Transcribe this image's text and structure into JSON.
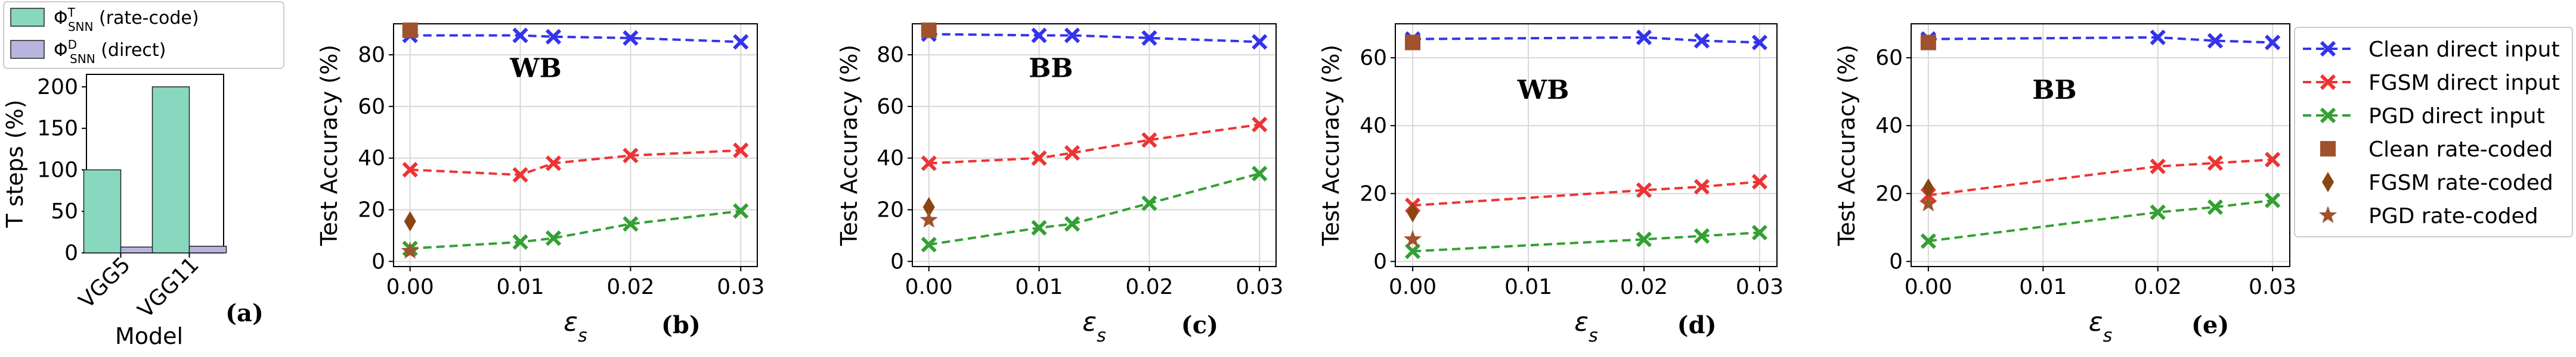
{
  "colors": {
    "clean_direct": "#3333ee",
    "fgsm_direct": "#ee3333",
    "pgd_direct": "#33a033",
    "clean_rate": "#a0522d",
    "fgsm_rate": "#8b4513",
    "pgd_rate": "#a0522d",
    "bar_rate": "#88d8c0",
    "bar_direct": "#b8b4e0",
    "grid": "#d8d8d8"
  },
  "legend": {
    "entries": [
      {
        "label": "Clean direct input",
        "kind": "line",
        "color_key": "clean_direct",
        "marker": "x"
      },
      {
        "label": "FGSM direct input",
        "kind": "line",
        "color_key": "fgsm_direct",
        "marker": "x"
      },
      {
        "label": "PGD direct input",
        "kind": "line",
        "color_key": "pgd_direct",
        "marker": "x"
      },
      {
        "label": "Clean rate-coded",
        "kind": "marker",
        "color_key": "clean_rate",
        "marker": "square"
      },
      {
        "label": "FGSM rate-coded",
        "kind": "marker",
        "color_key": "fgsm_rate",
        "marker": "diamond"
      },
      {
        "label": "PGD rate-coded",
        "kind": "marker",
        "color_key": "pgd_rate",
        "marker": "star"
      }
    ]
  },
  "chart_data": [
    {
      "panel": "(a)",
      "type": "bar",
      "categories": [
        "VGG5",
        "VGG11"
      ],
      "series": [
        {
          "name": "Φ^T_SNN (rate-code)",
          "color_key": "bar_rate",
          "values": [
            100,
            200
          ]
        },
        {
          "name": "Φ^D_SNN (direct)",
          "color_key": "bar_direct",
          "values": [
            7,
            8
          ]
        }
      ],
      "legend_labels": [
        {
          "base": "Φ",
          "sup": "T",
          "sub": "SNN",
          "rest": " (rate-code)"
        },
        {
          "base": "Φ",
          "sup": "D",
          "sub": "SNN",
          "rest": " (direct)"
        }
      ],
      "xlabel": "Model",
      "ylabel": "T steps (%)",
      "ylim": [
        0,
        215
      ],
      "yticks": [
        0,
        50,
        100,
        150,
        200
      ],
      "panel_label": "(a)"
    },
    {
      "panel": "(b)",
      "type": "line",
      "annotation": "WB",
      "panel_label": "(b)",
      "xlabel": "ε_s",
      "ylabel": "Test Accuracy (%)",
      "xlim": [
        -0.0015,
        0.0315
      ],
      "ylim": [
        -2,
        92
      ],
      "xticks": [
        "0.00",
        "0.01",
        "0.02",
        "0.03"
      ],
      "yticks": [
        0,
        20,
        40,
        60,
        80
      ],
      "series": [
        {
          "name": "Clean direct input",
          "color_key": "clean_direct",
          "x": [
            0,
            0.01,
            0.013,
            0.02,
            0.03
          ],
          "y": [
            87.5,
            87.5,
            87,
            86.5,
            85
          ]
        },
        {
          "name": "FGSM direct input",
          "color_key": "fgsm_direct",
          "x": [
            0,
            0.01,
            0.013,
            0.02,
            0.03
          ],
          "y": [
            35.5,
            33.5,
            38,
            41,
            43
          ]
        },
        {
          "name": "PGD direct input",
          "color_key": "pgd_direct",
          "x": [
            0,
            0.01,
            0.013,
            0.02,
            0.03
          ],
          "y": [
            5,
            7.5,
            9,
            14.5,
            19.5
          ]
        }
      ],
      "rate_coded": [
        {
          "name": "Clean rate-coded",
          "color_key": "clean_rate",
          "marker": "square",
          "x": 0,
          "y": 89.5
        },
        {
          "name": "FGSM rate-coded",
          "color_key": "fgsm_rate",
          "marker": "diamond",
          "x": 0,
          "y": 15.5
        },
        {
          "name": "PGD rate-coded",
          "color_key": "pgd_rate",
          "marker": "star",
          "x": 0,
          "y": 4
        }
      ]
    },
    {
      "panel": "(c)",
      "type": "line",
      "annotation": "BB",
      "panel_label": "(c)",
      "xlabel": "ε_s",
      "ylabel": "Test Accuracy (%)",
      "xlim": [
        -0.0015,
        0.0315
      ],
      "ylim": [
        -2,
        92
      ],
      "xticks": [
        "0.00",
        "0.01",
        "0.02",
        "0.03"
      ],
      "yticks": [
        0,
        20,
        40,
        60,
        80
      ],
      "series": [
        {
          "name": "Clean direct input",
          "color_key": "clean_direct",
          "x": [
            0,
            0.01,
            0.013,
            0.02,
            0.03
          ],
          "y": [
            88,
            87.5,
            87.5,
            86.5,
            85
          ]
        },
        {
          "name": "FGSM direct input",
          "color_key": "fgsm_direct",
          "x": [
            0,
            0.01,
            0.013,
            0.02,
            0.03
          ],
          "y": [
            38,
            40,
            42,
            47,
            53
          ]
        },
        {
          "name": "PGD direct input",
          "color_key": "pgd_direct",
          "x": [
            0,
            0.01,
            0.013,
            0.02,
            0.03
          ],
          "y": [
            6.5,
            13,
            14.5,
            22.5,
            34
          ]
        }
      ],
      "rate_coded": [
        {
          "name": "Clean rate-coded",
          "color_key": "clean_rate",
          "marker": "square",
          "x": 0,
          "y": 89.5
        },
        {
          "name": "FGSM rate-coded",
          "color_key": "fgsm_rate",
          "marker": "diamond",
          "x": 0,
          "y": 21
        },
        {
          "name": "PGD rate-coded",
          "color_key": "pgd_rate",
          "marker": "star",
          "x": 0,
          "y": 16
        }
      ]
    },
    {
      "panel": "(d)",
      "type": "line",
      "annotation": "WB",
      "panel_label": "(d)",
      "xlabel": "ε_s",
      "ylabel": "Test Accuracy (%)",
      "xlim": [
        -0.0015,
        0.0315
      ],
      "ylim": [
        -1.5,
        70
      ],
      "xticks": [
        "0.00",
        "0.01",
        "0.02",
        "0.03"
      ],
      "yticks": [
        0,
        20,
        40,
        60
      ],
      "series": [
        {
          "name": "Clean direct input",
          "color_key": "clean_direct",
          "x": [
            0,
            0.02,
            0.025,
            0.03
          ],
          "y": [
            65.5,
            66,
            65,
            64.5
          ]
        },
        {
          "name": "FGSM direct input",
          "color_key": "fgsm_direct",
          "x": [
            0,
            0.02,
            0.025,
            0.03
          ],
          "y": [
            16.5,
            21,
            22,
            23.5
          ]
        },
        {
          "name": "PGD direct input",
          "color_key": "pgd_direct",
          "x": [
            0,
            0.02,
            0.025,
            0.03
          ],
          "y": [
            3,
            6.5,
            7.5,
            8.5
          ]
        }
      ],
      "rate_coded": [
        {
          "name": "Clean rate-coded",
          "color_key": "clean_rate",
          "marker": "square",
          "x": 0,
          "y": 64.5
        },
        {
          "name": "FGSM rate-coded",
          "color_key": "fgsm_rate",
          "marker": "diamond",
          "x": 0,
          "y": 14.5
        },
        {
          "name": "PGD rate-coded",
          "color_key": "pgd_rate",
          "marker": "star",
          "x": 0,
          "y": 6.5
        }
      ]
    },
    {
      "panel": "(e)",
      "type": "line",
      "annotation": "BB",
      "panel_label": "(e)",
      "xlabel": "ε_s",
      "ylabel": "Test Accuracy (%)",
      "xlim": [
        -0.0015,
        0.0315
      ],
      "ylim": [
        -1.5,
        70
      ],
      "xticks": [
        "0.00",
        "0.01",
        "0.02",
        "0.03"
      ],
      "yticks": [
        0,
        20,
        40,
        60
      ],
      "series": [
        {
          "name": "Clean direct input",
          "color_key": "clean_direct",
          "x": [
            0,
            0.02,
            0.025,
            0.03
          ],
          "y": [
            65.5,
            66,
            65,
            64.5
          ]
        },
        {
          "name": "FGSM direct input",
          "color_key": "fgsm_direct",
          "x": [
            0,
            0.02,
            0.025,
            0.03
          ],
          "y": [
            19.5,
            28,
            29,
            30
          ]
        },
        {
          "name": "PGD direct input",
          "color_key": "pgd_direct",
          "x": [
            0,
            0.02,
            0.025,
            0.03
          ],
          "y": [
            6,
            14.5,
            16,
            18
          ]
        }
      ],
      "rate_coded": [
        {
          "name": "Clean rate-coded",
          "color_key": "clean_rate",
          "marker": "square",
          "x": 0,
          "y": 64.5
        },
        {
          "name": "FGSM rate-coded",
          "color_key": "fgsm_rate",
          "marker": "diamond",
          "x": 0,
          "y": 21.5
        },
        {
          "name": "PGD rate-coded",
          "color_key": "pgd_rate",
          "marker": "star",
          "x": 0,
          "y": 17
        }
      ]
    }
  ]
}
